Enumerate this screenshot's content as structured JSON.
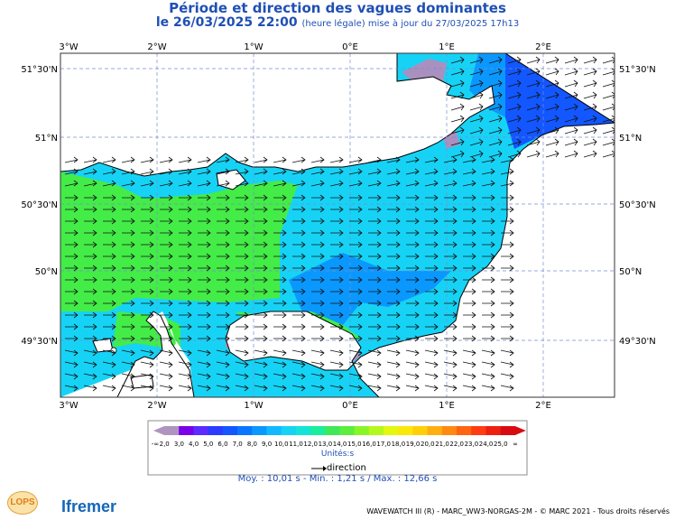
{
  "title": "Période et direction des vagues dominantes",
  "subtitle_date": "le 26/03/2025 22:00",
  "subtitle_note": "(heure légale) mise à jour du 27/03/2025 17h13",
  "axes": {
    "lon_labels": [
      "3°W",
      "2°W",
      "1°W",
      "0°E",
      "1°E",
      "2°E"
    ],
    "lat_labels": [
      "51°30'N",
      "51°N",
      "50°30'N",
      "50°N",
      "49°30'N"
    ]
  },
  "legend": {
    "values": [
      "-∞",
      "2,0",
      "3,0",
      "4,0",
      "5,0",
      "6,0",
      "7,0",
      "8,0",
      "9,0",
      "10,0",
      "11,0",
      "12,0",
      "13,0",
      "14,0",
      "15,0",
      "16,0",
      "17,0",
      "18,0",
      "19,0",
      "20,0",
      "21,0",
      "22,0",
      "23,0",
      "24,0",
      "25,0",
      "∞"
    ],
    "colors": [
      "#ae95bf",
      "#7a00ea",
      "#5b2bff",
      "#2b3bff",
      "#1257ff",
      "#0a76ff",
      "#0a98ff",
      "#12b9ff",
      "#16d3f5",
      "#14e4d8",
      "#19ee9c",
      "#3fe858",
      "#5cee3e",
      "#8af526",
      "#b5f81b",
      "#e2f810",
      "#fbe80a",
      "#ffcf0a",
      "#ffaf12",
      "#ff8a12",
      "#ff6410",
      "#ff3d10",
      "#f02010",
      "#d80c10"
    ],
    "units": "Unités:s",
    "direction_label": "direction"
  },
  "stats": "Moy. : 10,01 s   -   Min. : 1,21 s / Max. : 12,66 s",
  "credit": "WAVEWATCH III (R) - MARC_WW3-NORGAS-2M - © MARC 2021 - Tous droits réservés",
  "logos": {
    "lops": "LOPS",
    "ifremer": "Ifremer"
  },
  "colors": {
    "land": "#ffffff",
    "purple_zone": "#a990bf",
    "green_zone": "#44ec47",
    "cyan_zone": "#16d3f5",
    "blue_zone": "#0a98ff",
    "deep_blue_zone": "#1257ff",
    "title": "#1f4fb4"
  }
}
